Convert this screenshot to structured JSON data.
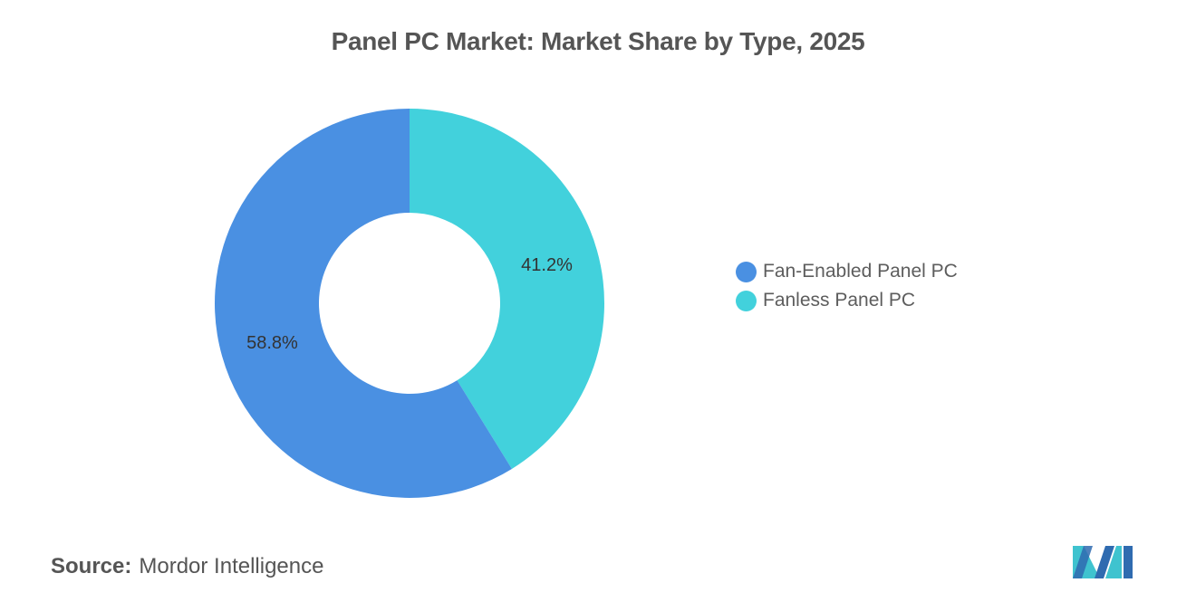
{
  "chart_data": {
    "type": "pie",
    "title": "Panel PC Market: Market Share by Type, 2025",
    "donut": true,
    "categories": [
      "Fan-Enabled Panel PC",
      "Fanless Panel PC"
    ],
    "values": [
      58.8,
      41.2
    ],
    "value_labels": [
      "58.8%",
      "41.2%"
    ],
    "colors": [
      "#4a90e2",
      "#42d1dc"
    ],
    "legend_position": "right"
  },
  "legend": {
    "items": [
      {
        "label": "Fan-Enabled Panel PC",
        "color": "#4a90e2"
      },
      {
        "label": "Fanless Panel PC",
        "color": "#42d1dc"
      }
    ]
  },
  "source": {
    "label": "Source:",
    "value": "Mordor Intelligence"
  },
  "logo": {
    "icon": "mordor-intelligence-logo-icon",
    "colors": [
      "#2f6bb0",
      "#3fc3cf"
    ]
  }
}
